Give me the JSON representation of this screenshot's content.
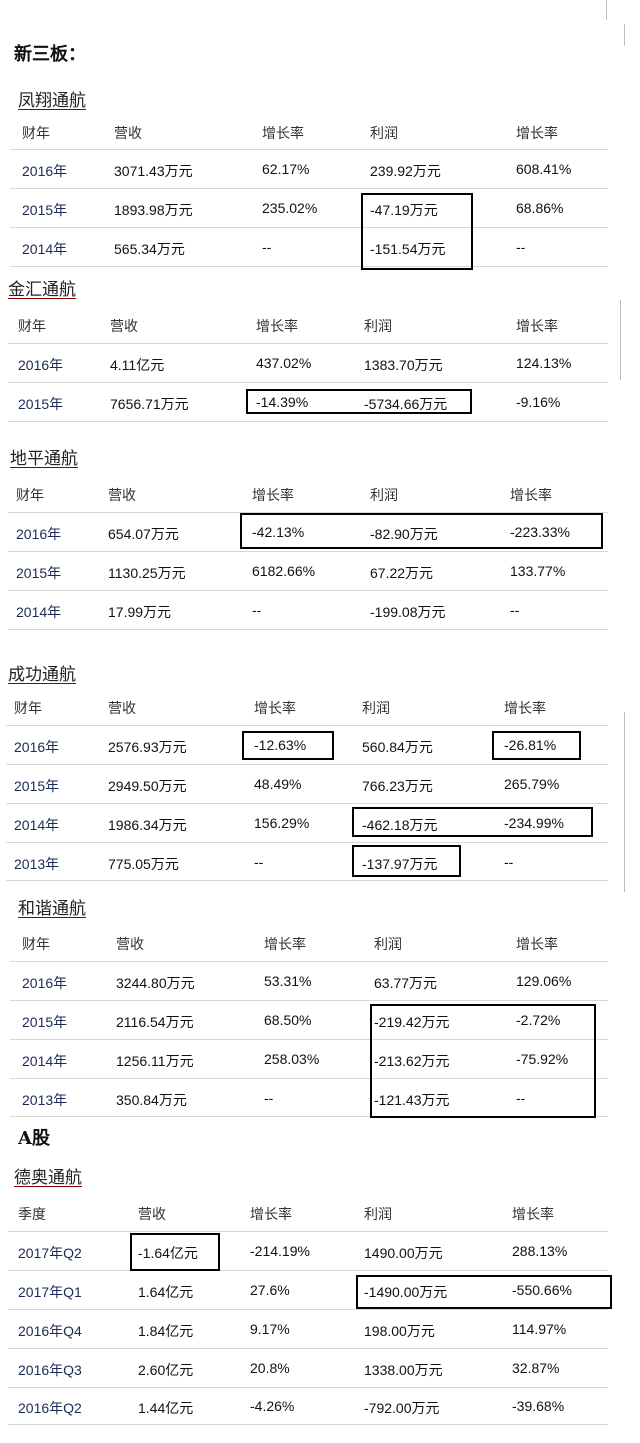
{
  "section_xinsanban": "新三板：",
  "section_agu": "A股",
  "tables": [
    {
      "company": "凤翔通航",
      "headers": [
        "财年",
        "营收",
        "增长率",
        "利润",
        "增长率"
      ],
      "rows": [
        [
          "2016年",
          "3071.43万元",
          "62.17%",
          "239.92万元",
          "608.41%"
        ],
        [
          "2015年",
          "1893.98万元",
          "235.02%",
          "-47.19万元",
          "68.86%"
        ],
        [
          "2014年",
          "565.34万元",
          "--",
          "-151.54万元",
          "--"
        ]
      ]
    },
    {
      "company": "金汇通航",
      "headers": [
        "财年",
        "营收",
        "增长率",
        "利润",
        "增长率"
      ],
      "rows": [
        [
          "2016年",
          "4.11亿元",
          "437.02%",
          "1383.70万元",
          "124.13%"
        ],
        [
          "2015年",
          "7656.71万元",
          "-14.39%",
          "-5734.66万元",
          "-9.16%"
        ]
      ]
    },
    {
      "company": "地平通航",
      "headers": [
        "财年",
        "营收",
        "增长率",
        "利润",
        "增长率"
      ],
      "rows": [
        [
          "2016年",
          "654.07万元",
          "-42.13%",
          "-82.90万元",
          "-223.33%"
        ],
        [
          "2015年",
          "1130.25万元",
          "6182.66%",
          "67.22万元",
          "133.77%"
        ],
        [
          "2014年",
          "17.99万元",
          "--",
          "-199.08万元",
          "--"
        ]
      ]
    },
    {
      "company": "成功通航",
      "headers": [
        "财年",
        "营收",
        "增长率",
        "利润",
        "增长率"
      ],
      "rows": [
        [
          "2016年",
          "2576.93万元",
          "-12.63%",
          "560.84万元",
          "-26.81%"
        ],
        [
          "2015年",
          "2949.50万元",
          "48.49%",
          "766.23万元",
          "265.79%"
        ],
        [
          "2014年",
          "1986.34万元",
          "156.29%",
          "-462.18万元",
          "-234.99%"
        ],
        [
          "2013年",
          "775.05万元",
          "--",
          "-137.97万元",
          "--"
        ]
      ]
    },
    {
      "company": "和谐通航",
      "headers": [
        "财年",
        "营收",
        "增长率",
        "利润",
        "增长率"
      ],
      "rows": [
        [
          "2016年",
          "3244.80万元",
          "53.31%",
          "63.77万元",
          "129.06%"
        ],
        [
          "2015年",
          "2116.54万元",
          "68.50%",
          "-219.42万元",
          "-2.72%"
        ],
        [
          "2014年",
          "1256.11万元",
          "258.03%",
          "-213.62万元",
          "-75.92%"
        ],
        [
          "2013年",
          "350.84万元",
          "--",
          "-121.43万元",
          "--"
        ]
      ]
    },
    {
      "company": "德奥通航",
      "headers": [
        "季度",
        "营收",
        "增长率",
        "利润",
        "增长率"
      ],
      "rows": [
        [
          "2017年Q2",
          "-1.64亿元",
          "-214.19%",
          "1490.00万元",
          "288.13%"
        ],
        [
          "2017年Q1",
          "1.64亿元",
          "27.6%",
          "-1490.00万元",
          "-550.66%"
        ],
        [
          "2016年Q4",
          "1.84亿元",
          "9.17%",
          "198.00万元",
          "114.97%"
        ],
        [
          "2016年Q3",
          "2.60亿元",
          "20.8%",
          "1338.00万元",
          "32.87%"
        ],
        [
          "2016年Q2",
          "1.44亿元",
          "-4.26%",
          "-792.00万元",
          "-39.68%"
        ]
      ]
    }
  ]
}
